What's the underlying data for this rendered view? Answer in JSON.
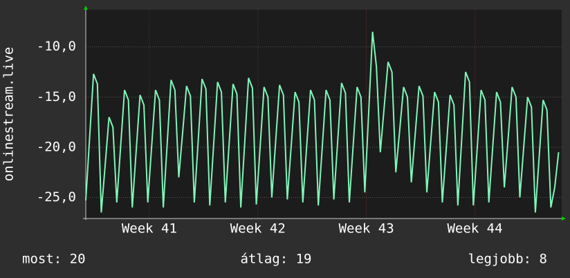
{
  "chart_data": {
    "type": "line",
    "ylabel": "onlinestream.live",
    "x": [
      0,
      0.25,
      0.5,
      0.75,
      1,
      1.25,
      1.5,
      1.75,
      2,
      2.25,
      2.5,
      2.75,
      3,
      3.25,
      3.5,
      3.75,
      4,
      4.25,
      4.5,
      4.75,
      5,
      5.25,
      5.5,
      5.75,
      6,
      6.25,
      6.5,
      6.75,
      7,
      7.25,
      7.5,
      7.75,
      8,
      8.25,
      8.5,
      8.75,
      9,
      9.25,
      9.5,
      9.75,
      10,
      10.25,
      10.5,
      10.75,
      11,
      11.25,
      11.5,
      11.75,
      12,
      12.25,
      12.5,
      12.75,
      13,
      13.25,
      13.5,
      13.75,
      14,
      14.25,
      14.5,
      14.75,
      15,
      15.25,
      15.5,
      15.75,
      16,
      16.25,
      16.5,
      16.75,
      17,
      17.25,
      17.5,
      17.75,
      18,
      18.25,
      18.5,
      18.75,
      19,
      19.25,
      19.5,
      19.75,
      20,
      20.25,
      20.5,
      20.75,
      21,
      21.25,
      21.5,
      21.75,
      22,
      22.25,
      22.5,
      22.75,
      23,
      23.25,
      23.5,
      23.75,
      24,
      24.25,
      24.5,
      24.75,
      25,
      25.25,
      25.5,
      25.75,
      26,
      26.25,
      26.5,
      26.75,
      27,
      27.25,
      27.5,
      27.75,
      28,
      28.25,
      28.5,
      28.75,
      29,
      29.25,
      29.5,
      29.75,
      30,
      30.25,
      30.5
    ],
    "series": [
      {
        "color": "#80f5b8",
        "values": [
          -25.3,
          -19,
          -12.7,
          -13.7,
          -26.5,
          -21.8,
          -17,
          -18,
          -25.5,
          -19.9,
          -14.3,
          -15.3,
          -26,
          -20.4,
          -14.8,
          -15.8,
          -25.5,
          -19.9,
          -14.3,
          -15.3,
          -26,
          -19.7,
          -13.3,
          -14.3,
          -23,
          -18.5,
          -13.9,
          -14.9,
          -25.5,
          -19.4,
          -13.2,
          -14.2,
          -25.8,
          -19.7,
          -13.5,
          -14.5,
          -25.5,
          -19.6,
          -13.7,
          -14.7,
          -26,
          -19.6,
          -13.1,
          -14.1,
          -25.7,
          -19.9,
          -14,
          -15,
          -25,
          -19.4,
          -13.8,
          -14.8,
          -25.2,
          -19.9,
          -14.5,
          -15.5,
          -25.5,
          -19.9,
          -14.3,
          -15.3,
          -25.8,
          -20.1,
          -14.3,
          -15.3,
          -25.2,
          -19.4,
          -13.6,
          -14.6,
          -25.5,
          -19.8,
          -14,
          -15,
          -24.5,
          -16.5,
          -8.5,
          -12,
          -20.5,
          -16,
          -11.5,
          -12.5,
          -22.5,
          -18.3,
          -14,
          -15,
          -23.5,
          -18.7,
          -13.9,
          -14.9,
          -24.5,
          -19.5,
          -14.5,
          -15.5,
          -25.5,
          -20.2,
          -14.8,
          -15.8,
          -25.8,
          -19.2,
          -12.5,
          -13.5,
          -25.8,
          -20.1,
          -14.3,
          -15.3,
          -25.5,
          -20,
          -14.5,
          -15.5,
          -24,
          -19,
          -14,
          -15,
          -25,
          -20,
          -15,
          -16,
          -26.5,
          -20.9,
          -15.3,
          -16.3,
          -26,
          -24,
          -20.5
        ]
      }
    ],
    "xlim": [
      0,
      30.7
    ],
    "xticks": [
      {
        "value": 4.1,
        "label": "Week 41"
      },
      {
        "value": 11.1,
        "label": "Week 42"
      },
      {
        "value": 18.1,
        "label": "Week 43"
      },
      {
        "value": 25.1,
        "label": "Week 44"
      }
    ],
    "ylim": [
      -27.1,
      -6.3
    ],
    "yticks": [
      {
        "value": -10,
        "label": "-10,0"
      },
      {
        "value": -15,
        "label": "-15,0"
      },
      {
        "value": -20,
        "label": "-20,0"
      },
      {
        "value": -25,
        "label": "-25,0"
      }
    ],
    "grid": true
  },
  "footer": {
    "current": "most: 20",
    "average": "átlag: 19",
    "best": "legjobb: 8"
  }
}
